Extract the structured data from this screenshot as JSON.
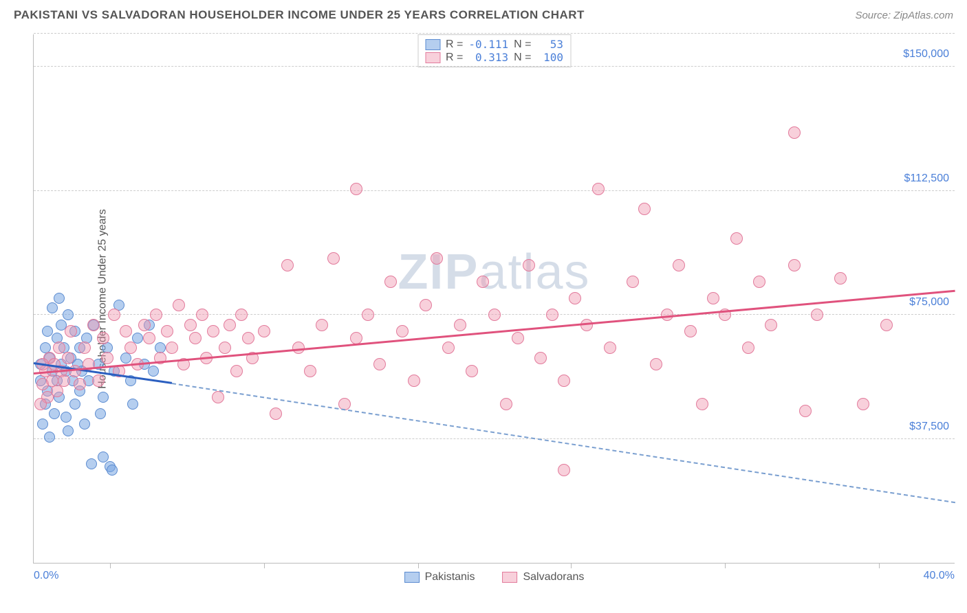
{
  "title": "PAKISTANI VS SALVADORAN HOUSEHOLDER INCOME UNDER 25 YEARS CORRELATION CHART",
  "source": "Source: ZipAtlas.com",
  "watermark": {
    "bold": "ZIP",
    "rest": "atlas"
  },
  "chart": {
    "type": "scatter",
    "xlim": [
      0,
      40
    ],
    "ylim": [
      0,
      160000
    ],
    "y_axis_title": "Householder Income Under 25 years",
    "y_ticks": [
      {
        "v": 37500,
        "label": "$37,500"
      },
      {
        "v": 75000,
        "label": "$75,000"
      },
      {
        "v": 112500,
        "label": "$112,500"
      },
      {
        "v": 150000,
        "label": "$150,000"
      }
    ],
    "x_ticks_minor": [
      3.3,
      10,
      16.7,
      23.3,
      30,
      36.7
    ],
    "x_start_label": "0.0%",
    "x_end_label": "40.0%",
    "grid_color": "#cccccc",
    "background_color": "#ffffff"
  },
  "series": [
    {
      "name": "Pakistanis",
      "fill": "rgba(120,165,225,0.55)",
      "stroke": "#5b8bd0",
      "marker_radius": 8,
      "R": "-0.111",
      "N": "53",
      "trend": {
        "x1": 0,
        "y1": 60000,
        "x2": 6,
        "y2": 54000,
        "color": "#2b5fc0",
        "width": 3,
        "style": "solid"
      },
      "trend_ext": {
        "x1": 6,
        "y1": 54000,
        "x2": 40,
        "y2": 18000,
        "color": "#7a9fd0",
        "width": 2,
        "style": "dashed"
      },
      "points": [
        [
          0.3,
          55
        ],
        [
          0.3,
          60
        ],
        [
          0.5,
          48
        ],
        [
          0.5,
          65
        ],
        [
          0.6,
          52
        ],
        [
          0.6,
          70
        ],
        [
          0.7,
          62
        ],
        [
          0.8,
          58
        ],
        [
          0.8,
          77
        ],
        [
          0.9,
          45
        ],
        [
          1.0,
          55
        ],
        [
          1.0,
          68
        ],
        [
          1.1,
          50
        ],
        [
          1.2,
          60
        ],
        [
          1.2,
          72
        ],
        [
          1.3,
          65
        ],
        [
          1.4,
          58
        ],
        [
          1.5,
          75
        ],
        [
          1.5,
          40
        ],
        [
          1.6,
          62
        ],
        [
          1.7,
          55
        ],
        [
          1.8,
          70
        ],
        [
          1.8,
          48
        ],
        [
          1.9,
          60
        ],
        [
          2.0,
          52
        ],
        [
          2.0,
          65
        ],
        [
          2.1,
          58
        ],
        [
          2.2,
          42
        ],
        [
          2.3,
          68
        ],
        [
          2.4,
          55
        ],
        [
          2.5,
          30
        ],
        [
          2.6,
          72
        ],
        [
          2.8,
          60
        ],
        [
          3.0,
          50
        ],
        [
          3.0,
          32
        ],
        [
          3.2,
          65
        ],
        [
          3.3,
          29
        ],
        [
          3.5,
          58
        ],
        [
          3.7,
          78
        ],
        [
          4.0,
          62
        ],
        [
          4.2,
          55
        ],
        [
          4.5,
          68
        ],
        [
          4.8,
          60
        ],
        [
          5.0,
          72
        ],
        [
          5.2,
          58
        ],
        [
          5.5,
          65
        ],
        [
          0.4,
          42
        ],
        [
          0.7,
          38
        ],
        [
          1.1,
          80
        ],
        [
          1.4,
          44
        ],
        [
          2.9,
          45
        ],
        [
          3.4,
          28
        ],
        [
          4.3,
          48
        ]
      ]
    },
    {
      "name": "Salvadorans",
      "fill": "rgba(240,150,175,0.45)",
      "stroke": "#e27a9b",
      "marker_radius": 9,
      "R": "0.313",
      "N": "100",
      "trend": {
        "x1": 0,
        "y1": 57000,
        "x2": 40,
        "y2": 82000,
        "color": "#e0527d",
        "width": 3,
        "style": "solid"
      },
      "points": [
        [
          0.4,
          54
        ],
        [
          0.5,
          58
        ],
        [
          0.6,
          50
        ],
        [
          0.7,
          62
        ],
        [
          0.8,
          55
        ],
        [
          0.9,
          60
        ],
        [
          1.0,
          52
        ],
        [
          1.1,
          65
        ],
        [
          1.2,
          58
        ],
        [
          1.3,
          55
        ],
        [
          1.5,
          62
        ],
        [
          1.6,
          70
        ],
        [
          1.8,
          58
        ],
        [
          2.0,
          54
        ],
        [
          2.2,
          65
        ],
        [
          2.4,
          60
        ],
        [
          2.6,
          72
        ],
        [
          2.8,
          55
        ],
        [
          3.0,
          68
        ],
        [
          3.2,
          62
        ],
        [
          3.5,
          75
        ],
        [
          3.7,
          58
        ],
        [
          4.0,
          70
        ],
        [
          4.2,
          65
        ],
        [
          4.5,
          60
        ],
        [
          4.8,
          72
        ],
        [
          5.0,
          68
        ],
        [
          5.3,
          75
        ],
        [
          5.5,
          62
        ],
        [
          5.8,
          70
        ],
        [
          6.0,
          65
        ],
        [
          6.3,
          78
        ],
        [
          6.5,
          60
        ],
        [
          6.8,
          72
        ],
        [
          7.0,
          68
        ],
        [
          7.3,
          75
        ],
        [
          7.5,
          62
        ],
        [
          7.8,
          70
        ],
        [
          8.0,
          50
        ],
        [
          8.3,
          65
        ],
        [
          8.5,
          72
        ],
        [
          8.8,
          58
        ],
        [
          9.0,
          75
        ],
        [
          9.3,
          68
        ],
        [
          9.5,
          62
        ],
        [
          10.0,
          70
        ],
        [
          10.5,
          45
        ],
        [
          11.0,
          90
        ],
        [
          11.5,
          65
        ],
        [
          12.0,
          58
        ],
        [
          12.5,
          72
        ],
        [
          13.0,
          92
        ],
        [
          13.5,
          48
        ],
        [
          14.0,
          68
        ],
        [
          14.0,
          113
        ],
        [
          14.5,
          75
        ],
        [
          15.0,
          60
        ],
        [
          15.5,
          85
        ],
        [
          16.0,
          70
        ],
        [
          16.5,
          55
        ],
        [
          17.0,
          78
        ],
        [
          17.5,
          92
        ],
        [
          18.0,
          65
        ],
        [
          18.5,
          72
        ],
        [
          19.0,
          58
        ],
        [
          19.5,
          85
        ],
        [
          20.0,
          75
        ],
        [
          20.5,
          48
        ],
        [
          21.0,
          68
        ],
        [
          21.5,
          90
        ],
        [
          22.0,
          62
        ],
        [
          22.5,
          75
        ],
        [
          23.0,
          55
        ],
        [
          23.0,
          28
        ],
        [
          23.5,
          80
        ],
        [
          24.0,
          72
        ],
        [
          24.5,
          113
        ],
        [
          25.0,
          65
        ],
        [
          26.0,
          85
        ],
        [
          26.5,
          107
        ],
        [
          27.0,
          60
        ],
        [
          27.5,
          75
        ],
        [
          28.0,
          90
        ],
        [
          28.5,
          70
        ],
        [
          29.0,
          48
        ],
        [
          29.5,
          80
        ],
        [
          30.0,
          75
        ],
        [
          30.5,
          98
        ],
        [
          31.0,
          65
        ],
        [
          31.5,
          85
        ],
        [
          32.0,
          72
        ],
        [
          33.0,
          90
        ],
        [
          33.5,
          46
        ],
        [
          34.0,
          75
        ],
        [
          35.0,
          86
        ],
        [
          33.0,
          130
        ],
        [
          36.0,
          48
        ],
        [
          37.0,
          72
        ],
        [
          0.3,
          48
        ],
        [
          0.4,
          60
        ]
      ]
    }
  ],
  "legend_bottom": [
    {
      "label": "Pakistanis",
      "fill": "rgba(120,165,225,0.55)",
      "stroke": "#5b8bd0"
    },
    {
      "label": "Salvadorans",
      "fill": "rgba(240,150,175,0.45)",
      "stroke": "#e27a9b"
    }
  ]
}
